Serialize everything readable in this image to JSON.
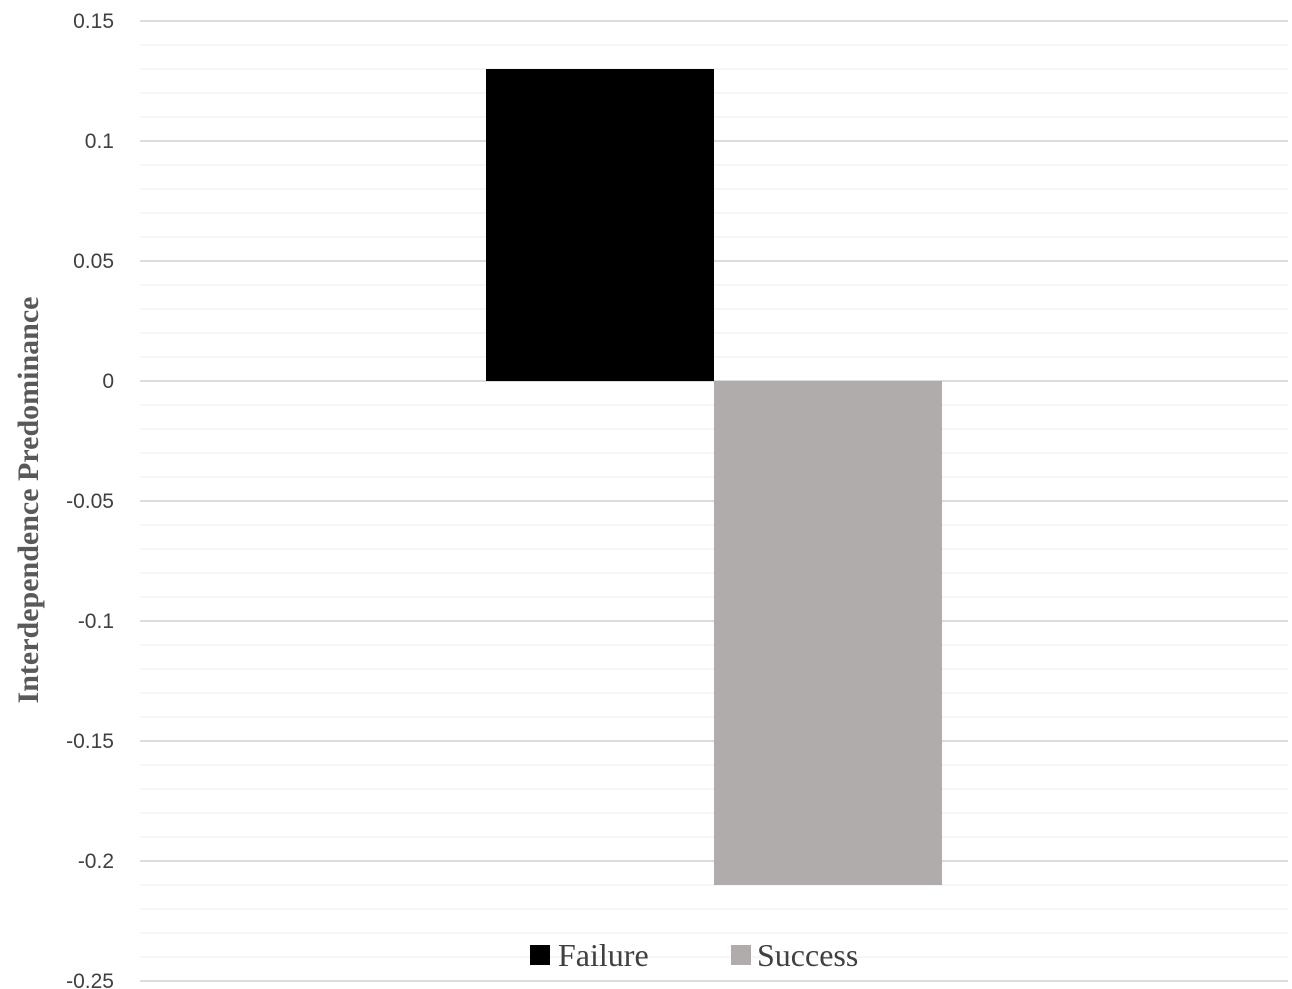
{
  "chart_data": {
    "type": "bar",
    "title": "",
    "xlabel": "",
    "ylabel": "Interdependence  Predominance",
    "ylim": [
      -0.25,
      0.15
    ],
    "ytick_step": 0.05,
    "minor_tick_step": 0.01,
    "yticks": [
      "0.15",
      "0.1",
      "0.05",
      "0",
      "-0.05",
      "-0.1",
      "-0.15",
      "-0.2",
      "-0.25"
    ],
    "categories": [
      ""
    ],
    "series": [
      {
        "name": "Failure",
        "values": [
          0.13
        ],
        "color": "#000000"
      },
      {
        "name": "Success",
        "values": [
          -0.21
        ],
        "color": "#b0acab"
      }
    ],
    "grid": true,
    "legend_position": "bottom-center"
  }
}
